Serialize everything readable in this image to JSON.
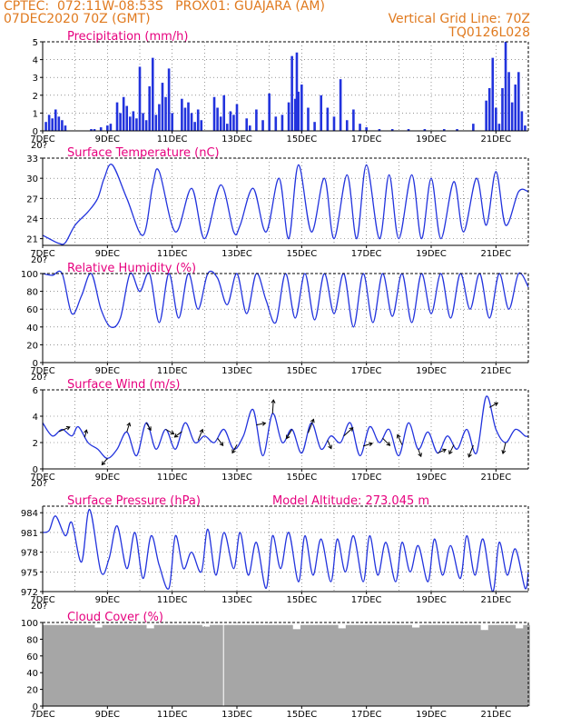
{
  "header": {
    "line1": "CPTEC:  072:11W-08:53S   PROX01: GUAJARA (AM)",
    "line2": "07DEC2020 70Z (GMT)",
    "grid_note": "Vertical Grid Line: 70Z",
    "code": "TQ0126L028"
  },
  "colors": {
    "line": "#2233dd",
    "title": "#e6007e",
    "header": "#e07a1f",
    "cloud": "#a6a6a6"
  },
  "chart_data": [
    {
      "id": "precip",
      "type": "bar",
      "title": "Precipitation (mm/h)",
      "xlim": [
        7,
        22
      ],
      "ylim": [
        0,
        5
      ],
      "yticks": [
        0,
        1,
        2,
        3,
        4,
        5
      ],
      "xticks": [
        "7DEC",
        "9DEC",
        "11DEC",
        "13DEC",
        "15DEC",
        "17DEC",
        "19DEC",
        "21DEC"
      ],
      "cutoff_label": "20?",
      "series": [
        {
          "x": [
            7.1,
            7.2,
            7.3,
            7.4,
            7.5,
            7.6,
            7.7,
            8.5,
            8.6,
            8.8,
            9.0,
            9.1,
            9.3,
            9.4,
            9.5,
            9.6,
            9.7,
            9.8,
            9.9,
            10.0,
            10.1,
            10.2,
            10.3,
            10.4,
            10.5,
            10.6,
            10.7,
            10.8,
            10.9,
            11.0,
            11.3,
            11.4,
            11.5,
            11.6,
            11.7,
            11.8,
            11.9,
            12.3,
            12.4,
            12.5,
            12.6,
            12.7,
            12.8,
            12.9,
            13.0,
            13.3,
            13.4,
            13.6,
            13.8,
            14.0,
            14.2,
            14.4,
            14.6,
            14.7,
            14.8,
            14.85,
            14.9,
            15.0,
            15.2,
            15.4,
            15.6,
            15.8,
            16.0,
            16.2,
            16.4,
            16.6,
            16.8,
            17.0,
            17.4,
            17.8,
            18.3,
            18.8,
            19.4,
            19.8,
            20.3,
            20.7,
            20.8,
            20.9,
            21.0,
            21.1,
            21.2,
            21.3,
            21.4,
            21.5,
            21.6,
            21.7,
            21.8,
            21.9
          ],
          "values": [
            0.5,
            0.9,
            0.7,
            1.2,
            0.8,
            0.6,
            0.3,
            0.1,
            0.1,
            0.2,
            0.3,
            0.4,
            1.6,
            1.0,
            1.9,
            1.4,
            0.8,
            1.1,
            0.7,
            3.6,
            1.0,
            0.6,
            2.5,
            4.1,
            0.9,
            1.5,
            2.7,
            1.9,
            3.5,
            1.0,
            1.8,
            1.3,
            1.6,
            1.0,
            0.5,
            1.2,
            0.6,
            1.9,
            1.3,
            0.8,
            2.0,
            0.4,
            1.1,
            0.9,
            1.5,
            0.7,
            0.3,
            1.2,
            0.6,
            2.1,
            0.8,
            0.9,
            1.6,
            4.2,
            1.8,
            4.4,
            2.2,
            2.6,
            1.3,
            0.5,
            2.0,
            1.3,
            0.8,
            2.9,
            0.6,
            1.2,
            0.4,
            0.2,
            0.1,
            0.1,
            0.1,
            0.1,
            0.1,
            0.1,
            0.4,
            1.7,
            2.4,
            4.1,
            1.3,
            0.4,
            2.4,
            5.0,
            3.3,
            1.6,
            2.6,
            3.3,
            1.1,
            0.3
          ]
        }
      ]
    },
    {
      "id": "temp",
      "type": "line",
      "title": "Surface Temperature (nC)",
      "xlim": [
        7,
        22
      ],
      "ylim": [
        20,
        33
      ],
      "yticks": [
        21,
        24,
        27,
        30,
        33
      ],
      "xticks": [
        "7DEC",
        "9DEC",
        "11DEC",
        "13DEC",
        "15DEC",
        "17DEC",
        "19DEC",
        "21DEC"
      ],
      "cutoff_label": "20?",
      "series": [
        {
          "x": [
            7.0,
            7.2,
            7.5,
            7.7,
            8.0,
            8.4,
            8.7,
            8.9,
            9.15,
            9.6,
            10.1,
            10.4,
            10.6,
            11.1,
            11.6,
            12.0,
            12.5,
            12.9,
            13.1,
            13.5,
            13.9,
            14.3,
            14.6,
            14.9,
            15.3,
            15.7,
            16.0,
            16.4,
            16.7,
            17.0,
            17.4,
            17.7,
            18.0,
            18.4,
            18.7,
            19.0,
            19.3,
            19.7,
            20.0,
            20.4,
            20.7,
            21.0,
            21.3,
            21.7,
            22.0
          ],
          "values": [
            21.5,
            21,
            20.3,
            20.4,
            23,
            25,
            27,
            30,
            32,
            27,
            21.5,
            29,
            31,
            22,
            28.5,
            21,
            29,
            22,
            23,
            28.5,
            22,
            30,
            21,
            32,
            22,
            30,
            21,
            30.5,
            21,
            32,
            21,
            30.5,
            21,
            30.5,
            21,
            30,
            21,
            29.5,
            22,
            30,
            23,
            31,
            23,
            28,
            28
          ]
        }
      ]
    },
    {
      "id": "rh",
      "type": "line",
      "title": "Relative Humidity (%)",
      "xlim": [
        7,
        22
      ],
      "ylim": [
        0,
        100
      ],
      "yticks": [
        0,
        20,
        40,
        60,
        80,
        100
      ],
      "xticks": [
        "7DEC",
        "9DEC",
        "11DEC",
        "13DEC",
        "15DEC",
        "17DEC",
        "19DEC",
        "21DEC"
      ],
      "cutoff_label": "20?",
      "series": [
        {
          "x": [
            7.0,
            7.3,
            7.6,
            7.9,
            8.2,
            8.5,
            8.8,
            9.1,
            9.4,
            9.7,
            10.0,
            10.3,
            10.6,
            10.9,
            11.2,
            11.5,
            11.8,
            12.1,
            12.4,
            12.7,
            13.0,
            13.3,
            13.6,
            13.9,
            14.2,
            14.5,
            14.8,
            15.1,
            15.4,
            15.7,
            16.0,
            16.3,
            16.6,
            16.9,
            17.2,
            17.5,
            17.8,
            18.1,
            18.4,
            18.7,
            19.0,
            19.3,
            19.6,
            19.9,
            20.2,
            20.5,
            20.8,
            21.1,
            21.4,
            21.7,
            22.0
          ],
          "values": [
            100,
            98,
            100,
            55,
            75,
            100,
            60,
            40,
            50,
            100,
            80,
            100,
            45,
            100,
            50,
            100,
            60,
            100,
            95,
            65,
            100,
            55,
            100,
            70,
            45,
            100,
            50,
            100,
            48,
            100,
            55,
            100,
            40,
            100,
            45,
            100,
            52,
            100,
            45,
            100,
            55,
            100,
            50,
            100,
            60,
            100,
            50,
            100,
            60,
            100,
            85
          ]
        }
      ]
    },
    {
      "id": "wind",
      "type": "line",
      "title": "Surface Wind (m/s)",
      "xlim": [
        7,
        22
      ],
      "ylim": [
        0,
        6
      ],
      "yticks": [
        0,
        2,
        4,
        6
      ],
      "xticks": [
        "7DEC",
        "9DEC",
        "11DEC",
        "13DEC",
        "15DEC",
        "17DEC",
        "19DEC",
        "21DEC"
      ],
      "cutoff_label": "20?",
      "series": [
        {
          "x": [
            7.0,
            7.3,
            7.6,
            7.9,
            8.1,
            8.4,
            8.7,
            9.0,
            9.3,
            9.6,
            9.9,
            10.2,
            10.5,
            10.8,
            11.1,
            11.4,
            11.7,
            12.0,
            12.3,
            12.6,
            12.9,
            13.2,
            13.5,
            13.8,
            14.1,
            14.4,
            14.7,
            15.0,
            15.3,
            15.6,
            15.9,
            16.2,
            16.5,
            16.8,
            17.1,
            17.4,
            17.7,
            18.0,
            18.3,
            18.6,
            18.9,
            19.2,
            19.5,
            19.8,
            20.1,
            20.4,
            20.7,
            21.0,
            21.3,
            21.6,
            21.9,
            22.0
          ],
          "values": [
            3.5,
            2.5,
            3.0,
            2.5,
            3.2,
            2.0,
            1.5,
            0.8,
            1.5,
            2.8,
            1.0,
            3.5,
            1.5,
            3.0,
            1.5,
            3.5,
            2.0,
            2.5,
            2.0,
            3.0,
            1.5,
            2.5,
            4.5,
            1.0,
            4.2,
            2.0,
            3.0,
            1.2,
            3.5,
            1.5,
            2.5,
            2.0,
            3.5,
            1.0,
            3.2,
            2.0,
            3.0,
            1.0,
            3.5,
            1.5,
            2.8,
            1.2,
            2.5,
            1.5,
            3.0,
            1.2,
            5.5,
            3.0,
            2.0,
            3.0,
            2.5,
            2.5
          ]
        }
      ],
      "vectors": {
        "x": [
          7.5,
          8.3,
          9.0,
          9.6,
          10.2,
          10.8,
          11.3,
          11.8,
          12.4,
          13.0,
          13.6,
          14.1,
          14.7,
          15.2,
          15.8,
          16.3,
          16.9,
          17.5,
          18.1,
          18.6,
          19.2,
          19.7,
          20.3,
          20.8,
          21.3
        ],
        "u": [
          1.2,
          0.2,
          -0.6,
          0.3,
          0.5,
          0.9,
          -0.8,
          0.5,
          0.6,
          -0.5,
          1.0,
          0.1,
          -0.6,
          0.6,
          0.4,
          1.0,
          1.0,
          0.8,
          -0.5,
          0.3,
          0.9,
          -0.5,
          -0.5,
          0.9,
          -0.3
        ],
        "v": [
          0.5,
          0.8,
          -0.7,
          1.0,
          -0.8,
          -0.5,
          -0.6,
          1.2,
          -0.8,
          -0.9,
          0.2,
          1.5,
          -1.0,
          1.5,
          -0.9,
          0.9,
          0.3,
          -0.8,
          1.1,
          -0.8,
          0.4,
          -1.0,
          -1.3,
          0.5,
          -1.2
        ]
      }
    },
    {
      "id": "pres",
      "type": "line",
      "title": "Surface Pressure (hPa)",
      "subtitle": "Model Altitude: 273.045 m",
      "xlim": [
        7,
        22
      ],
      "ylim": [
        972,
        985
      ],
      "yticks": [
        972,
        975,
        978,
        981,
        984
      ],
      "xticks": [
        "7DEC",
        "9DEC",
        "11DEC",
        "13DEC",
        "15DEC",
        "17DEC",
        "19DEC",
        "21DEC"
      ],
      "cutoff_label": "20?",
      "series": [
        {
          "x": [
            7.0,
            7.2,
            7.4,
            7.7,
            7.9,
            8.2,
            8.45,
            8.8,
            9.05,
            9.3,
            9.6,
            9.85,
            10.1,
            10.35,
            10.6,
            10.9,
            11.1,
            11.35,
            11.6,
            11.9,
            12.1,
            12.35,
            12.6,
            12.9,
            13.1,
            13.35,
            13.6,
            13.9,
            14.1,
            14.35,
            14.6,
            14.9,
            15.1,
            15.35,
            15.6,
            15.9,
            16.1,
            16.35,
            16.6,
            16.9,
            17.1,
            17.35,
            17.6,
            17.9,
            18.1,
            18.35,
            18.6,
            18.9,
            19.1,
            19.35,
            19.6,
            19.9,
            20.1,
            20.35,
            20.6,
            20.9,
            21.1,
            21.35,
            21.6,
            21.9,
            22.0
          ],
          "values": [
            981,
            981.3,
            983.5,
            980.5,
            982.5,
            976.5,
            984.5,
            975,
            977,
            982,
            975.5,
            981,
            974,
            980.5,
            976,
            972.5,
            980.5,
            975.5,
            978,
            975,
            981.5,
            974.5,
            981,
            975.5,
            981,
            974.5,
            979.5,
            972.5,
            980.5,
            975.5,
            981,
            973.5,
            980.5,
            974.5,
            980,
            973.5,
            980,
            975,
            980.5,
            973.5,
            980.5,
            974.5,
            979.5,
            973.5,
            979.5,
            975,
            979,
            973.5,
            980,
            974.5,
            979,
            974,
            980.5,
            974.5,
            980,
            972,
            979.5,
            974.5,
            978.5,
            972.5,
            975
          ]
        }
      ]
    },
    {
      "id": "cloud",
      "type": "bar",
      "title": "Cloud Cover (%)",
      "xlim": [
        7,
        22
      ],
      "ylim": [
        0,
        100
      ],
      "yticks": [
        0,
        20,
        40,
        60,
        80,
        100
      ],
      "xticks": [
        "7DEC",
        "9DEC",
        "11DEC",
        "13DEC",
        "15DEC",
        "17DEC",
        "19DEC",
        "21DEC"
      ],
      "series": [
        {
          "x_start": 7.0,
          "x_end": 22.0,
          "typical": 97,
          "gap_x": 12.55,
          "dips": [
            {
              "x": 8.7,
              "v": 94
            },
            {
              "x": 10.3,
              "v": 93
            },
            {
              "x": 12.0,
              "v": 95
            },
            {
              "x": 14.8,
              "v": 92
            },
            {
              "x": 16.2,
              "v": 93
            },
            {
              "x": 18.5,
              "v": 94
            },
            {
              "x": 20.6,
              "v": 91
            },
            {
              "x": 21.7,
              "v": 93
            }
          ]
        }
      ]
    }
  ]
}
